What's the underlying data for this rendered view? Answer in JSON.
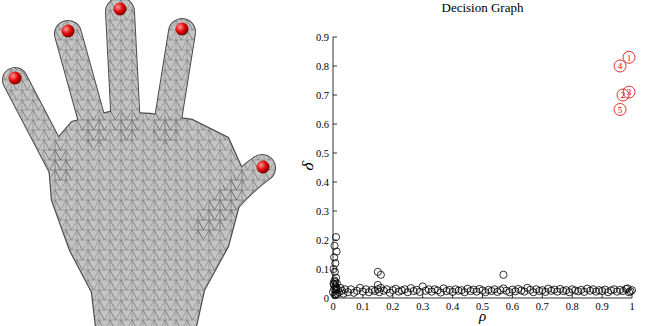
{
  "chart_data": {
    "type": "scatter",
    "title": "Decision Graph",
    "x_label": "ρ",
    "y_label": "δ",
    "xlim": [
      0,
      1
    ],
    "ylim": [
      0,
      0.9
    ],
    "xticks": [
      0,
      0.1,
      0.2,
      0.3,
      0.4,
      0.5,
      0.6,
      0.7,
      0.8,
      0.9,
      1
    ],
    "yticks": [
      0,
      0.1,
      0.2,
      0.3,
      0.4,
      0.5,
      0.6,
      0.7,
      0.8,
      0.9
    ],
    "grid": false,
    "series": [
      {
        "color": "#000000",
        "marker": "circle",
        "x": [
          0,
          0.002,
          0.004,
          0.005,
          0.006,
          0.008,
          0.01,
          0.01,
          0.012,
          0.015,
          0.003,
          0.007,
          0.009,
          0.011,
          0.013,
          0.02,
          0.025,
          0.03,
          0.035,
          0.04,
          0.05,
          0.06,
          0.07,
          0.08,
          0.09,
          0.1,
          0.11,
          0.12,
          0.13,
          0.14,
          0.15,
          0.15,
          0.155,
          0.16,
          0.17,
          0.18,
          0.19,
          0.2,
          0.21,
          0.22,
          0.23,
          0.24,
          0.25,
          0.26,
          0.27,
          0.28,
          0.29,
          0.3,
          0.31,
          0.32,
          0.33,
          0.34,
          0.35,
          0.36,
          0.37,
          0.38,
          0.39,
          0.4,
          0.41,
          0.42,
          0.43,
          0.44,
          0.45,
          0.46,
          0.47,
          0.48,
          0.49,
          0.5,
          0.51,
          0.52,
          0.53,
          0.54,
          0.55,
          0.56,
          0.57,
          0.58,
          0.59,
          0.6,
          0.61,
          0.62,
          0.63,
          0.64,
          0.65,
          0.66,
          0.67,
          0.68,
          0.69,
          0.7,
          0.71,
          0.72,
          0.73,
          0.74,
          0.75,
          0.76,
          0.77,
          0.78,
          0.79,
          0.8,
          0.81,
          0.82,
          0.83,
          0.84,
          0.85,
          0.86,
          0.87,
          0.88,
          0.89,
          0.9,
          0.91,
          0.92,
          0.93,
          0.94,
          0.95,
          0.96,
          0.97,
          0.98,
          0.99,
          1,
          0.985,
          0.995,
          0.01,
          0.005,
          0.008,
          0.002,
          0.15,
          0.16,
          0.57,
          0.012,
          0.004,
          0.006
        ],
        "values": [
          0.02,
          0.05,
          0.03,
          0.06,
          0.01,
          0.04,
          0.025,
          0.07,
          0.035,
          0.015,
          0.045,
          0.055,
          0.012,
          0.03,
          0.05,
          0.02,
          0.035,
          0.025,
          0.015,
          0.03,
          0.02,
          0.03,
          0.018,
          0.025,
          0.035,
          0.022,
          0.03,
          0.02,
          0.028,
          0.024,
          0.03,
          0.045,
          0.02,
          0.035,
          0.025,
          0.03,
          0.018,
          0.027,
          0.032,
          0.022,
          0.026,
          0.03,
          0.02,
          0.034,
          0.024,
          0.028,
          0.021,
          0.04,
          0.025,
          0.03,
          0.022,
          0.03,
          0.026,
          0.019,
          0.033,
          0.024,
          0.028,
          0.021,
          0.03,
          0.025,
          0.027,
          0.02,
          0.032,
          0.024,
          0.029,
          0.022,
          0.031,
          0.026,
          0.02,
          0.028,
          0.024,
          0.03,
          0.021,
          0.027,
          0.033,
          0.025,
          0.02,
          0.029,
          0.023,
          0.031,
          0.026,
          0.022,
          0.035,
          0.028,
          0.02,
          0.03,
          0.024,
          0.027,
          0.021,
          0.032,
          0.025,
          0.029,
          0.022,
          0.031,
          0.024,
          0.027,
          0.02,
          0.03,
          0.026,
          0.023,
          0.028,
          0.021,
          0.032,
          0.025,
          0.03,
          0.022,
          0.027,
          0.024,
          0.029,
          0.02,
          0.026,
          0.03,
          0.022,
          0.028,
          0.024,
          0.031,
          0.02,
          0.027,
          0.033,
          0.023,
          0.21,
          0.18,
          0.12,
          0.1,
          0.09,
          0.08,
          0.08,
          0.16,
          0.14,
          0.09
        ]
      },
      {
        "color": "#e00000",
        "marker": "circled-label",
        "x": [
          0.96,
          0.99,
          0.99,
          0.97,
          0.96
        ],
        "values": [
          0.8,
          0.83,
          0.71,
          0.7,
          0.65
        ],
        "labels": [
          "4",
          "1",
          "3",
          "2",
          "5"
        ]
      }
    ]
  }
}
